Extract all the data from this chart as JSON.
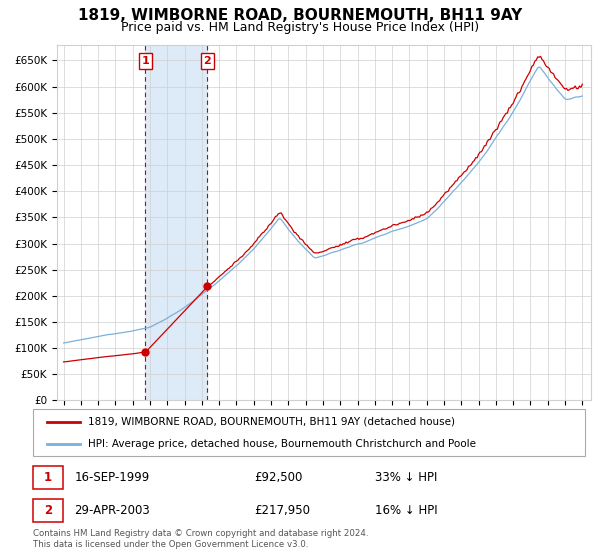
{
  "title": "1819, WIMBORNE ROAD, BOURNEMOUTH, BH11 9AY",
  "subtitle": "Price paid vs. HM Land Registry's House Price Index (HPI)",
  "legend_line1": "1819, WIMBORNE ROAD, BOURNEMOUTH, BH11 9AY (detached house)",
  "legend_line2": "HPI: Average price, detached house, Bournemouth Christchurch and Poole",
  "footer": "Contains HM Land Registry data © Crown copyright and database right 2024.\nThis data is licensed under the Open Government Licence v3.0.",
  "transaction1_date": "16-SEP-1999",
  "transaction1_price": "£92,500",
  "transaction1_hpi": "33% ↓ HPI",
  "transaction1_year": 1999.72,
  "transaction1_value": 92500,
  "transaction2_date": "29-APR-2003",
  "transaction2_price": "£217,950",
  "transaction2_hpi": "16% ↓ HPI",
  "transaction2_year": 2003.32,
  "transaction2_value": 217950,
  "hpi_color": "#7ab0dc",
  "price_color": "#cc0000",
  "background_color": "#ffffff",
  "grid_color": "#d0d0d0",
  "shade_color": "#ddeaf7",
  "ylim_max": 680000,
  "ytick_step": 50000,
  "xstart": 1995,
  "xend": 2025,
  "title_fontsize": 11,
  "subtitle_fontsize": 9
}
